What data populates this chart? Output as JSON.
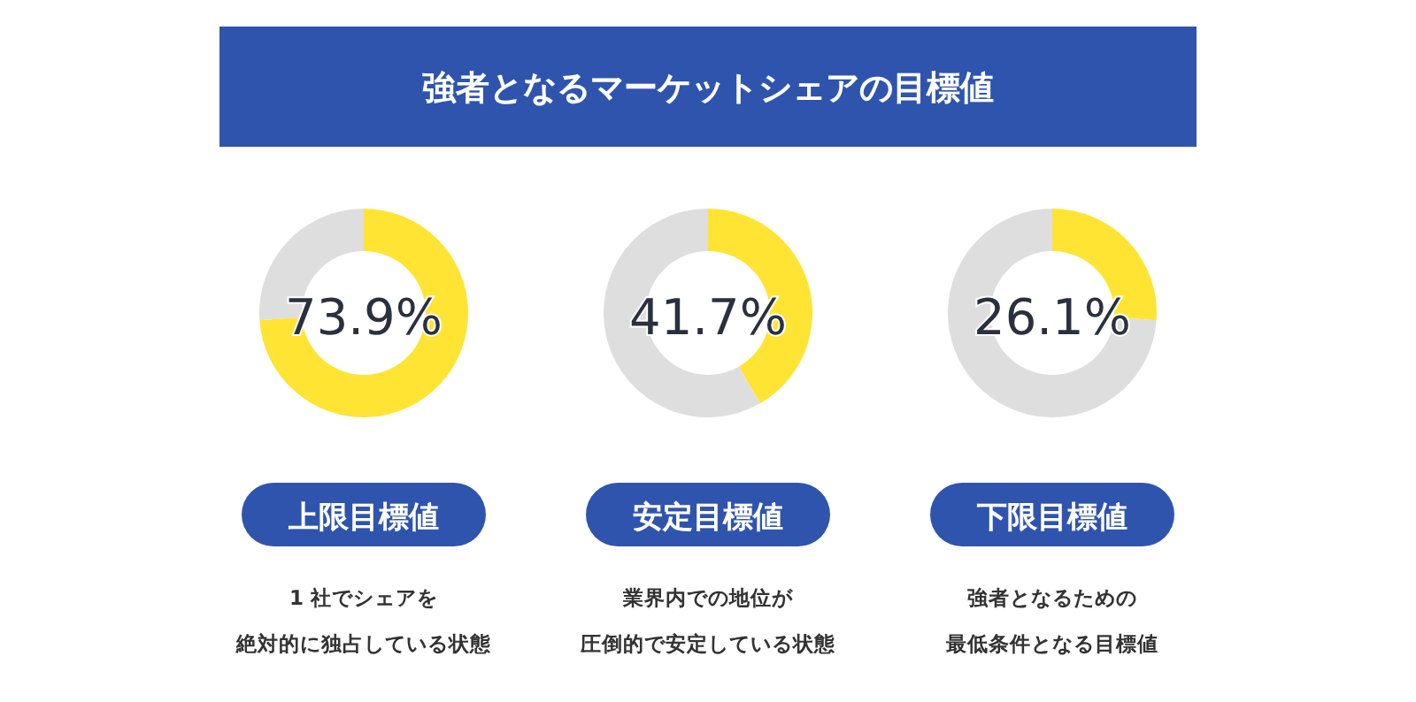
{
  "chart_data": [
    {
      "type": "other",
      "title": "強者となるマーケットシェアの目標値"
    },
    {
      "type": "donut",
      "title": "上限目標値",
      "categories": [
        null,
        null
      ],
      "values": [
        73.9,
        26.1
      ],
      "colors": [
        "#ffe433",
        "#dedede"
      ],
      "annotations": [
        "73.9%",
        "1 社でシェアを",
        "絶対的に独占している状態"
      ]
    },
    {
      "type": "donut",
      "title": "安定目標値",
      "categories": [
        null,
        null
      ],
      "values": [
        41.7,
        58.3
      ],
      "colors": [
        "#ffe433",
        "#dedede"
      ],
      "annotations": [
        "41.7%",
        "業界内での地位が",
        "圧倒的で安定している状態"
      ]
    },
    {
      "type": "donut",
      "title": "下限目標値",
      "categories": [
        null,
        null
      ],
      "values": [
        26.1,
        73.9
      ],
      "colors": [
        "#ffe433",
        "#dedede"
      ],
      "annotations": [
        "26.1%",
        "強者となるための",
        "最低条件となる目標値"
      ]
    }
  ]
}
